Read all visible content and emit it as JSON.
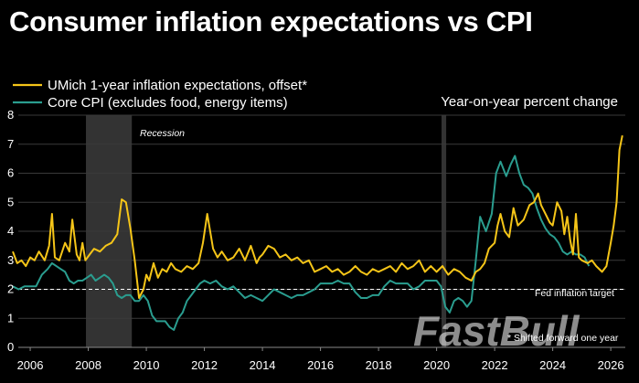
{
  "title": "Consumer inflation expectations vs CPI",
  "watermark": "FastBull",
  "chart_data": {
    "type": "line",
    "title": "Consumer inflation expectations vs CPI",
    "subtitle": "Year-on-year percent change",
    "xlabel": "",
    "ylabel": "",
    "xlim": [
      2005.4,
      2026.5
    ],
    "ylim": [
      0,
      8
    ],
    "x_ticks": [
      "2006",
      "2008",
      "2010",
      "2012",
      "2014",
      "2016",
      "2018",
      "2020",
      "2022",
      "2024",
      "2026"
    ],
    "y_ticks": [
      "0",
      "1",
      "2",
      "3",
      "4",
      "5",
      "6",
      "7",
      "8"
    ],
    "legend": {
      "position": "top-left",
      "entries": [
        "UMich 1-year inflation expectations, offset*",
        "Core CPI (excludes food, energy items)"
      ]
    },
    "recessions": [
      {
        "start": 2007.92,
        "end": 2009.5,
        "label": "Recession"
      },
      {
        "start": 2020.17,
        "end": 2020.33,
        "label": ""
      }
    ],
    "reference_line": {
      "value": 2,
      "label": "Fed inflation target"
    },
    "footnote": "* Shifted forward one year",
    "colors": {
      "umich": "#f5c518",
      "cpi": "#2a9d8f",
      "recession": "#333333",
      "grid": "#3a3a3a"
    },
    "series": [
      {
        "name": "UMich 1-year inflation expectations, offset*",
        "color": "#f5c518",
        "x": [
          2005.4,
          2005.55,
          2005.7,
          2005.85,
          2006.0,
          2006.15,
          2006.3,
          2006.5,
          2006.65,
          2006.75,
          2006.85,
          2007.0,
          2007.2,
          2007.35,
          2007.45,
          2007.6,
          2007.7,
          2007.8,
          2007.9,
          2008.05,
          2008.2,
          2008.4,
          2008.6,
          2008.8,
          2009.0,
          2009.15,
          2009.3,
          2009.45,
          2009.6,
          2009.75,
          2009.9,
          2010.0,
          2010.1,
          2010.25,
          2010.4,
          2010.55,
          2010.7,
          2010.85,
          2011.0,
          2011.2,
          2011.4,
          2011.6,
          2011.8,
          2011.95,
          2012.1,
          2012.2,
          2012.3,
          2012.45,
          2012.6,
          2012.8,
          2013.0,
          2013.2,
          2013.4,
          2013.6,
          2013.8,
          2013.9,
          2014.0,
          2014.2,
          2014.4,
          2014.6,
          2014.8,
          2015.0,
          2015.2,
          2015.4,
          2015.6,
          2015.8,
          2016.0,
          2016.2,
          2016.4,
          2016.6,
          2016.8,
          2017.0,
          2017.2,
          2017.4,
          2017.6,
          2017.8,
          2018.0,
          2018.2,
          2018.4,
          2018.6,
          2018.8,
          2019.0,
          2019.2,
          2019.4,
          2019.6,
          2019.8,
          2020.0,
          2020.2,
          2020.4,
          2020.6,
          2020.8,
          2021.0,
          2021.2,
          2021.35,
          2021.5,
          2021.65,
          2021.8,
          2022.0,
          2022.1,
          2022.2,
          2022.35,
          2022.5,
          2022.65,
          2022.8,
          2023.0,
          2023.2,
          2023.35,
          2023.5,
          2023.6,
          2023.75,
          2023.9,
          2024.0,
          2024.15,
          2024.3,
          2024.4,
          2024.5,
          2024.6,
          2024.7,
          2024.8,
          2024.9,
          2025.0,
          2025.2,
          2025.35,
          2025.5,
          2025.7,
          2025.85,
          2026.0,
          2026.1,
          2026.2,
          2026.3,
          2026.4
        ],
        "values": [
          3.3,
          2.9,
          3.0,
          2.8,
          3.1,
          3.0,
          3.3,
          3.0,
          3.5,
          4.6,
          3.1,
          3.0,
          3.6,
          3.3,
          4.4,
          3.2,
          3.0,
          3.6,
          3.0,
          3.2,
          3.4,
          3.3,
          3.5,
          3.6,
          3.9,
          5.1,
          5.0,
          4.1,
          3.0,
          1.7,
          2.0,
          2.5,
          2.3,
          2.9,
          2.4,
          2.7,
          2.6,
          2.9,
          2.7,
          2.6,
          2.8,
          2.7,
          2.9,
          3.6,
          4.6,
          4.0,
          3.4,
          3.1,
          3.3,
          3.0,
          3.1,
          3.4,
          3.0,
          3.5,
          2.9,
          3.1,
          3.2,
          3.5,
          3.4,
          3.1,
          3.2,
          3.0,
          3.1,
          2.9,
          3.0,
          2.6,
          2.7,
          2.8,
          2.6,
          2.7,
          2.5,
          2.6,
          2.8,
          2.6,
          2.5,
          2.7,
          2.6,
          2.7,
          2.8,
          2.6,
          2.9,
          2.7,
          2.8,
          3.0,
          2.6,
          2.8,
          2.6,
          2.8,
          2.5,
          2.7,
          2.6,
          2.4,
          2.3,
          2.6,
          2.7,
          2.9,
          3.4,
          3.6,
          4.2,
          4.6,
          4.0,
          3.8,
          4.8,
          4.2,
          4.4,
          4.9,
          5.0,
          5.3,
          4.9,
          4.6,
          4.3,
          4.2,
          5.0,
          4.7,
          3.9,
          4.5,
          3.7,
          3.2,
          4.6,
          3.1,
          3.0,
          2.9,
          3.0,
          2.8,
          2.6,
          2.8,
          3.6,
          4.2,
          5.0,
          6.8,
          7.3
        ]
      },
      {
        "name": "Core CPI (excludes food, energy items)",
        "color": "#2a9d8f",
        "x": [
          2005.4,
          2005.6,
          2005.8,
          2006.0,
          2006.2,
          2006.4,
          2006.6,
          2006.75,
          2006.9,
          2007.05,
          2007.2,
          2007.35,
          2007.5,
          2007.65,
          2007.8,
          2007.95,
          2008.1,
          2008.25,
          2008.4,
          2008.55,
          2008.7,
          2008.85,
          2009.0,
          2009.15,
          2009.3,
          2009.45,
          2009.6,
          2009.75,
          2009.9,
          2010.05,
          2010.2,
          2010.35,
          2010.5,
          2010.65,
          2010.8,
          2010.95,
          2011.1,
          2011.25,
          2011.4,
          2011.55,
          2011.7,
          2011.85,
          2012.0,
          2012.2,
          2012.4,
          2012.6,
          2012.8,
          2013.0,
          2013.2,
          2013.4,
          2013.6,
          2013.8,
          2014.0,
          2014.2,
          2014.4,
          2014.6,
          2014.8,
          2015.0,
          2015.2,
          2015.4,
          2015.6,
          2015.8,
          2016.0,
          2016.2,
          2016.4,
          2016.6,
          2016.8,
          2017.0,
          2017.2,
          2017.4,
          2017.6,
          2017.8,
          2018.0,
          2018.2,
          2018.4,
          2018.6,
          2018.8,
          2019.0,
          2019.2,
          2019.4,
          2019.6,
          2019.8,
          2020.0,
          2020.15,
          2020.3,
          2020.45,
          2020.6,
          2020.75,
          2020.9,
          2021.05,
          2021.2,
          2021.35,
          2021.5,
          2021.7,
          2021.9,
          2022.05,
          2022.2,
          2022.4,
          2022.55,
          2022.7,
          2022.85,
          2023.0,
          2023.15,
          2023.3,
          2023.45,
          2023.6,
          2023.75,
          2023.9,
          2024.05,
          2024.2,
          2024.35,
          2024.5,
          2024.65,
          2024.8,
          2024.95,
          2025.1,
          2025.25
        ],
        "values": [
          2.1,
          2.0,
          2.1,
          2.1,
          2.1,
          2.5,
          2.7,
          2.9,
          2.8,
          2.7,
          2.6,
          2.3,
          2.2,
          2.3,
          2.3,
          2.4,
          2.5,
          2.3,
          2.4,
          2.5,
          2.4,
          2.2,
          1.8,
          1.7,
          1.8,
          1.8,
          1.6,
          1.6,
          1.8,
          1.6,
          1.1,
          0.9,
          0.9,
          0.9,
          0.7,
          0.6,
          1.0,
          1.2,
          1.6,
          1.8,
          2.0,
          2.2,
          2.3,
          2.2,
          2.3,
          2.1,
          2.0,
          2.1,
          1.9,
          1.7,
          1.8,
          1.7,
          1.6,
          1.8,
          2.0,
          1.9,
          1.8,
          1.7,
          1.8,
          1.8,
          1.9,
          2.0,
          2.2,
          2.2,
          2.2,
          2.3,
          2.2,
          2.2,
          1.9,
          1.7,
          1.7,
          1.8,
          1.8,
          2.1,
          2.3,
          2.2,
          2.2,
          2.2,
          2.0,
          2.1,
          2.3,
          2.3,
          2.3,
          2.1,
          1.4,
          1.2,
          1.6,
          1.7,
          1.6,
          1.4,
          1.6,
          3.0,
          4.5,
          4.0,
          4.6,
          6.0,
          6.4,
          5.9,
          6.3,
          6.6,
          6.0,
          5.6,
          5.5,
          5.3,
          4.8,
          4.4,
          4.1,
          3.9,
          3.8,
          3.6,
          3.3,
          3.2,
          3.3,
          3.2,
          3.2,
          3.1,
          2.8
        ]
      }
    ]
  }
}
